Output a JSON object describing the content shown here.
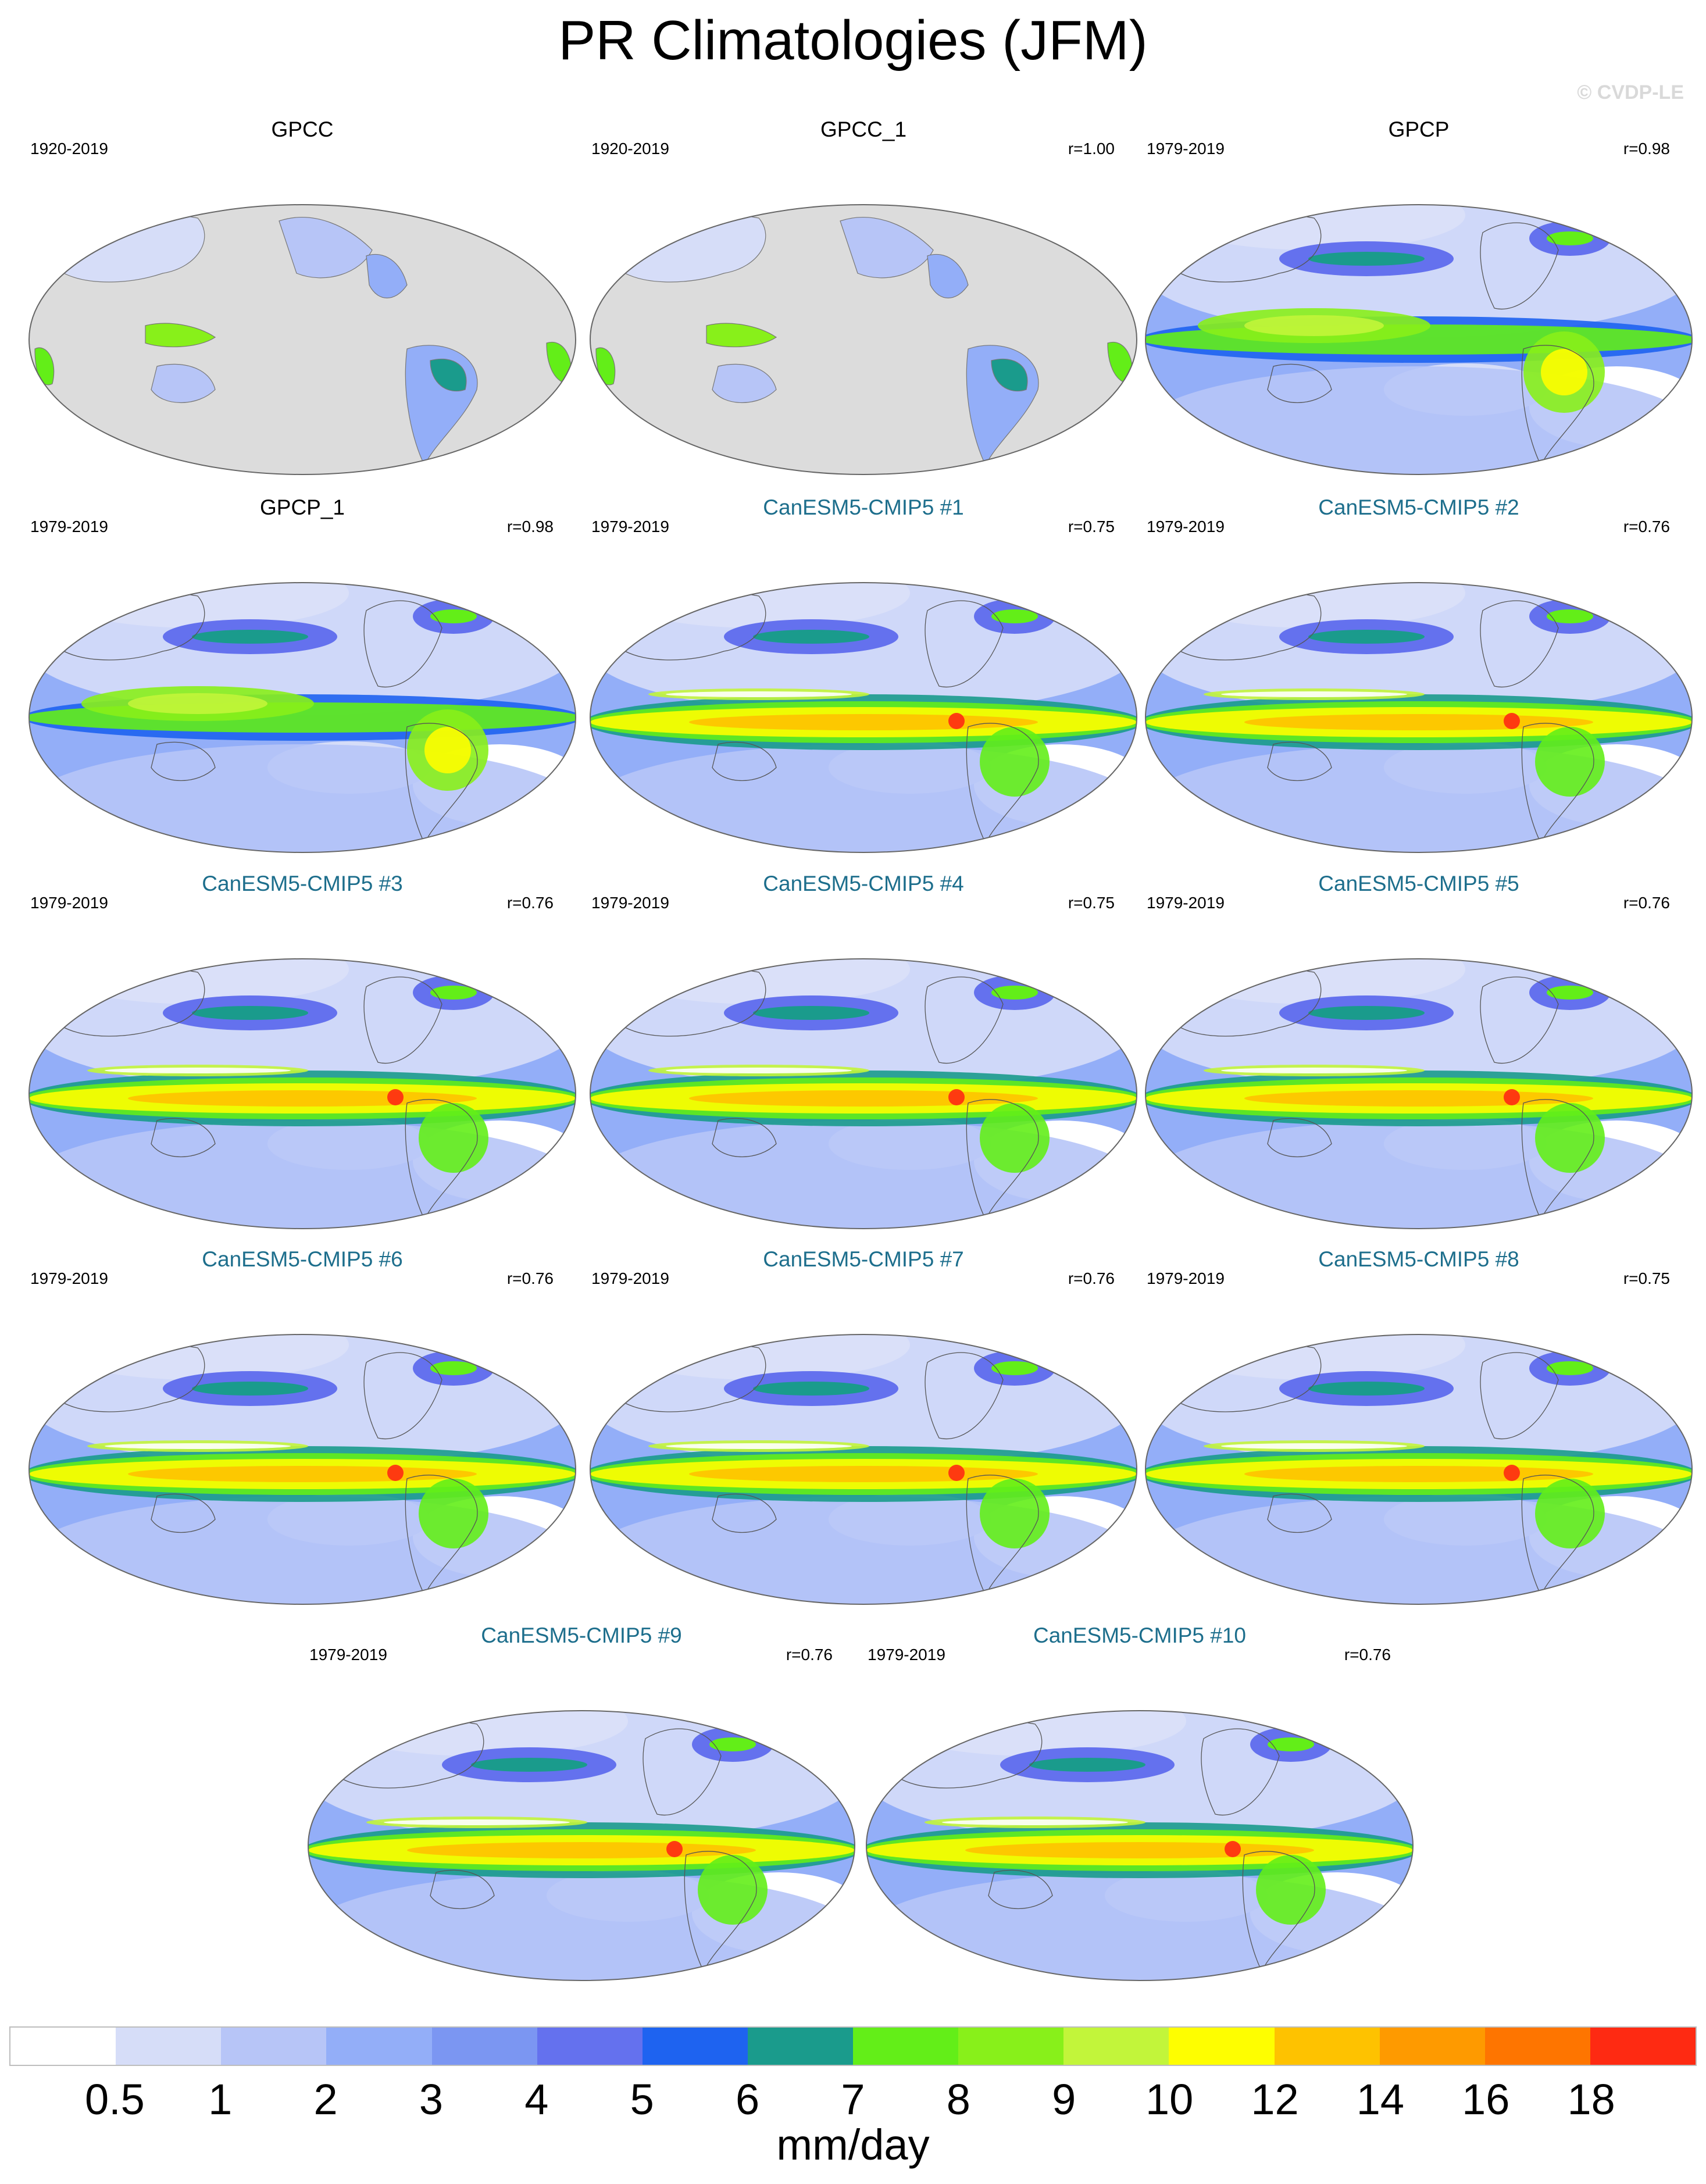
{
  "title": "PR Climatologies (JFM)",
  "watermark": "© CVDP-LE",
  "panels": [
    {
      "title": "GPCC",
      "period": "1920-2019",
      "r": "",
      "kind": "gpcc"
    },
    {
      "title": "GPCC_1",
      "period": "1920-2019",
      "r": "r=1.00",
      "kind": "gpcc"
    },
    {
      "title": "GPCP",
      "period": "1979-2019",
      "r": "r=0.98",
      "kind": "obs"
    },
    {
      "title": "GPCP_1",
      "period": "1979-2019",
      "r": "r=0.98",
      "kind": "obs"
    },
    {
      "title": "CanESM5-CMIP5 #1",
      "period": "1979-2019",
      "r": "r=0.75",
      "kind": "model"
    },
    {
      "title": "CanESM5-CMIP5 #2",
      "period": "1979-2019",
      "r": "r=0.76",
      "kind": "model"
    },
    {
      "title": "CanESM5-CMIP5 #3",
      "period": "1979-2019",
      "r": "r=0.76",
      "kind": "model"
    },
    {
      "title": "CanESM5-CMIP5 #4",
      "period": "1979-2019",
      "r": "r=0.75",
      "kind": "model"
    },
    {
      "title": "CanESM5-CMIP5 #5",
      "period": "1979-2019",
      "r": "r=0.76",
      "kind": "model"
    },
    {
      "title": "CanESM5-CMIP5 #6",
      "period": "1979-2019",
      "r": "r=0.76",
      "kind": "model"
    },
    {
      "title": "CanESM5-CMIP5 #7",
      "period": "1979-2019",
      "r": "r=0.76",
      "kind": "model"
    },
    {
      "title": "CanESM5-CMIP5 #8",
      "period": "1979-2019",
      "r": "r=0.75",
      "kind": "model"
    },
    {
      "title": "CanESM5-CMIP5 #9",
      "period": "1979-2019",
      "r": "r=0.76",
      "kind": "model"
    },
    {
      "title": "CanESM5-CMIP5 #10",
      "period": "1979-2019",
      "r": "r=0.76",
      "kind": "model"
    }
  ],
  "colorbar": {
    "colors": [
      "#ffffff",
      "#d6ddf8",
      "#b7c5f7",
      "#93aef8",
      "#7b96f2",
      "#6471ee",
      "#1e63f0",
      "#1a9b8c",
      "#63ee18",
      "#88f01a",
      "#c2f53a",
      "#fefe00",
      "#fec200",
      "#fe9a00",
      "#fe7500",
      "#fe2a12"
    ],
    "ticks": [
      "0.5",
      "1",
      "2",
      "3",
      "4",
      "5",
      "6",
      "7",
      "8",
      "9",
      "10",
      "12",
      "14",
      "16",
      "18"
    ],
    "unit": "mm/day"
  }
}
